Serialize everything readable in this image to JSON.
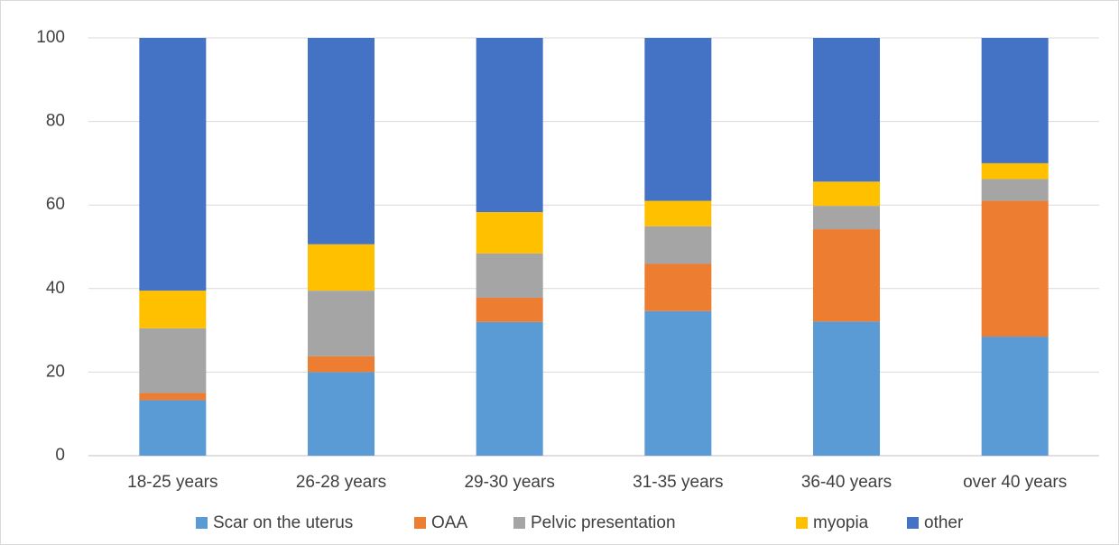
{
  "chart_data": {
    "type": "bar",
    "stacked": true,
    "title": "",
    "xlabel": "",
    "ylabel": "",
    "ylim": [
      0,
      100
    ],
    "yticks": [
      0,
      20,
      40,
      60,
      80,
      100
    ],
    "grid": true,
    "legend_position": "bottom",
    "categories": [
      "18-25 years",
      "26-28 years",
      "29-30 years",
      "31-35 years",
      "36-40 years",
      "over 40 years"
    ],
    "series": [
      {
        "name": "Scar on the uterus",
        "color": "#5B9BD5",
        "values": [
          13.3,
          20.0,
          32.0,
          34.6,
          32.1,
          28.5
        ]
      },
      {
        "name": "OAA",
        "color": "#ED7D31",
        "values": [
          1.7,
          3.8,
          5.8,
          11.3,
          22.1,
          32.5
        ]
      },
      {
        "name": "Pelvic presentation",
        "color": "#A5A5A5",
        "values": [
          15.5,
          15.7,
          10.6,
          9.0,
          5.6,
          5.2
        ]
      },
      {
        "name": "myopia",
        "color": "#FFC000",
        "values": [
          9.0,
          11.1,
          9.9,
          6.1,
          5.8,
          3.8
        ]
      },
      {
        "name": "other",
        "color": "#4472C4",
        "values": [
          60.5,
          49.4,
          41.7,
          39.0,
          34.4,
          30.0
        ]
      }
    ]
  }
}
